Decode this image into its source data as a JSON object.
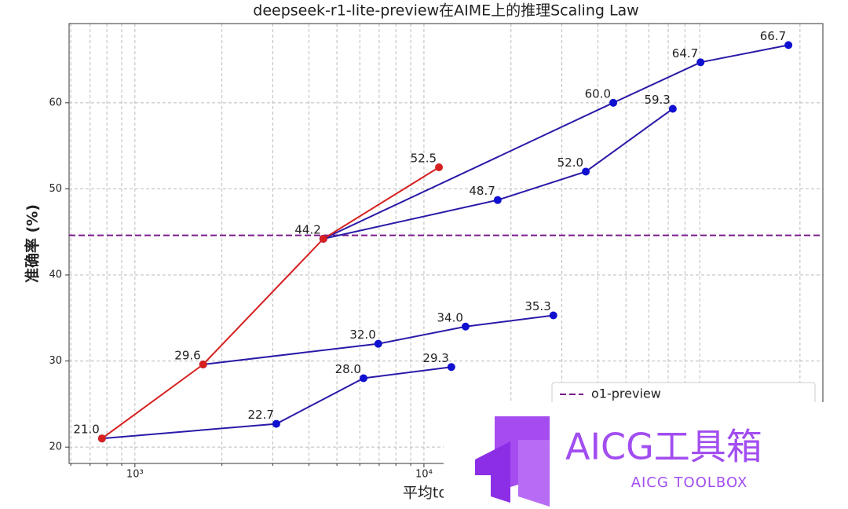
{
  "chart_data": {
    "type": "line",
    "title": "deepseek-r1-lite-preview在AIME上的推理Scaling Law",
    "x_label": "平均token数",
    "y_label": "准确率 (%)",
    "x_log": true,
    "xlim": [
      592,
      240000
    ],
    "ylim": [
      18.1,
      69.2
    ],
    "xticks": [
      {
        "value": 1000,
        "label": "10³"
      },
      {
        "value": 10000,
        "label": "10⁴"
      }
    ],
    "xminorticks": [
      600,
      700,
      800,
      900,
      2000,
      3000,
      4000,
      5000,
      6000,
      7000,
      8000,
      9000,
      20000,
      30000,
      40000,
      50000,
      60000,
      70000,
      80000,
      90000,
      200000
    ],
    "yticks": [
      20,
      30,
      40,
      50,
      60
    ],
    "grid": true,
    "series": [
      {
        "color": "#d62020",
        "x": [
          769,
          1722,
          4487,
          11270
        ],
        "values": [
          21.0,
          29.6,
          44.2,
          52.5
        ],
        "value_labels": [
          "21.0",
          "29.6",
          "44.2",
          "52.5"
        ]
      },
      {
        "color": "#2a1aa8",
        "x": [
          4487,
          45190,
          90570,
          182400
        ],
        "values": [
          44.2,
          60.0,
          64.7,
          66.7
        ],
        "value_labels": [
          null,
          "60.0",
          "64.7",
          "66.7"
        ]
      },
      {
        "color": "#2a1aa8",
        "x": [
          4487,
          17990,
          36300,
          72600
        ],
        "values": [
          44.2,
          48.7,
          52.0,
          59.3
        ],
        "value_labels": [
          null,
          "48.7",
          "52.0",
          "59.3"
        ]
      },
      {
        "color": "#2a1aa8",
        "x": [
          1722,
          6950,
          13930,
          28040
        ],
        "values": [
          29.6,
          32.0,
          34.0,
          35.3
        ],
        "value_labels": [
          null,
          "32.0",
          "34.0",
          "35.3"
        ]
      },
      {
        "color": "#2a1aa8",
        "x": [
          769,
          3085,
          6180,
          12440
        ],
        "values": [
          21.0,
          22.7,
          28.0,
          29.3
        ],
        "value_labels": [
          null,
          "22.7",
          "28.0",
          "29.3"
        ]
      }
    ],
    "reference_line": {
      "name": "o1-preview",
      "value": 44.6,
      "color": "#7a1a8a"
    },
    "legend": "lower right"
  },
  "watermark": {
    "title": "AICG工具箱",
    "subtitle": "AICG TOOLBOX"
  }
}
